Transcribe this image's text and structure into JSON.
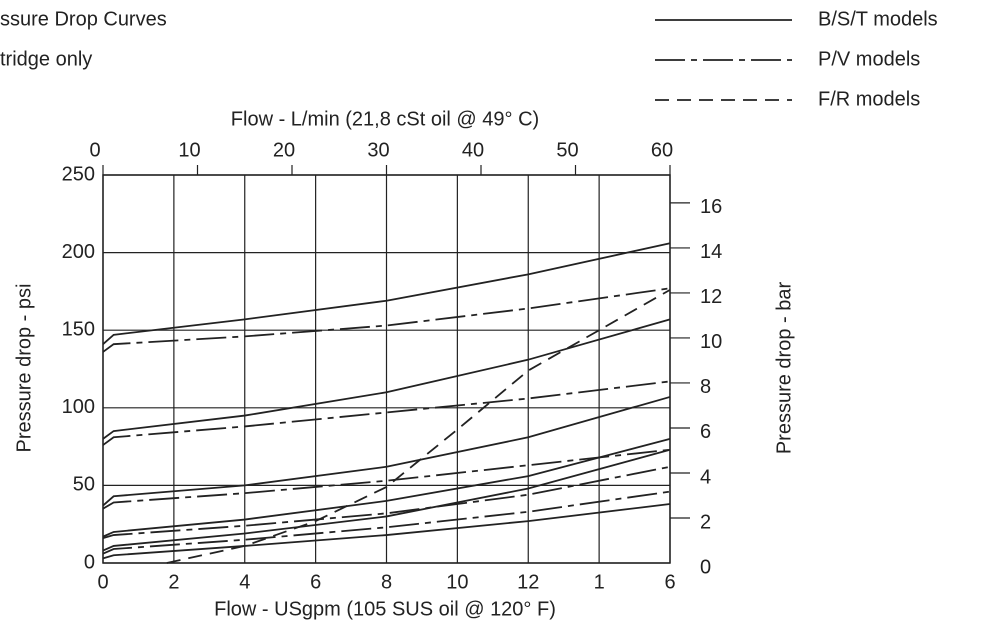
{
  "chart_data": {
    "type": "line",
    "title": "ssure Drop Curves",
    "subtitle": "tridge only",
    "x_label": "Flow - USgpm (105 SUS oil @ 120° F)",
    "x2_label": "Flow - L/min (21,8 cSt oil @ 49° C)",
    "y_label": "Pressure drop - psi",
    "y2_label": "Pressure drop - bar",
    "xlim": [
      0,
      16
    ],
    "xticks": [
      0,
      2,
      4,
      6,
      8,
      10,
      12,
      {
        "value": 14,
        "label": "1"
      },
      {
        "value": 16,
        "label": "6"
      }
    ],
    "x2lim": [
      0,
      60
    ],
    "x2ticks": [
      0,
      10,
      20,
      30,
      40,
      50,
      60
    ],
    "ylim": [
      0,
      250
    ],
    "yticks": [
      0,
      50,
      100,
      150,
      200,
      250
    ],
    "y2lim": [
      0,
      17.24
    ],
    "y2ticks": [
      0,
      2,
      4,
      6,
      8,
      10,
      12,
      14,
      16
    ],
    "grid": true,
    "legend": [
      {
        "label": "B/S/T models",
        "style": "solid"
      },
      {
        "label": "P/V models",
        "style": "dashdot"
      },
      {
        "label": "F/R models",
        "style": "dashed"
      }
    ],
    "series": [
      {
        "style": "solid",
        "color": "#222222",
        "x": [
          0,
          0.3,
          4,
          8,
          12,
          16
        ],
        "values": [
          141,
          147,
          157,
          169,
          186,
          206
        ]
      },
      {
        "style": "dashdot",
        "color": "#222222",
        "x": [
          0,
          0.3,
          4,
          8,
          12,
          16
        ],
        "values": [
          136,
          141,
          146,
          153,
          164,
          177
        ]
      },
      {
        "style": "solid",
        "color": "#222222",
        "x": [
          0,
          0.3,
          4,
          8,
          12,
          16
        ],
        "values": [
          80,
          85,
          95,
          110,
          131,
          157
        ]
      },
      {
        "style": "dashdot",
        "color": "#222222",
        "x": [
          0,
          0.3,
          4,
          8,
          12,
          16
        ],
        "values": [
          76,
          81,
          88,
          97,
          106,
          117
        ]
      },
      {
        "style": "solid",
        "color": "#222222",
        "x": [
          0,
          0.3,
          4,
          8,
          12,
          16
        ],
        "values": [
          37,
          43,
          50,
          62,
          81,
          107
        ]
      },
      {
        "style": "dashdot",
        "color": "#222222",
        "x": [
          0,
          0.3,
          4,
          8,
          12,
          16
        ],
        "values": [
          35,
          39,
          45,
          53,
          63,
          73
        ]
      },
      {
        "style": "solid",
        "color": "#222222",
        "x": [
          0,
          0.3,
          4,
          8,
          12,
          16
        ],
        "values": [
          17,
          20,
          28,
          40,
          56,
          80
        ]
      },
      {
        "style": "dashdot",
        "color": "#222222",
        "x": [
          0,
          0.3,
          4,
          8,
          12,
          16
        ],
        "values": [
          16,
          18,
          24,
          32,
          44,
          62
        ]
      },
      {
        "style": "solid",
        "color": "#222222",
        "x": [
          0,
          0.3,
          4,
          8,
          12,
          16
        ],
        "values": [
          8,
          11,
          19,
          30,
          48,
          73
        ]
      },
      {
        "style": "dashdot",
        "color": "#222222",
        "x": [
          0,
          0.3,
          4,
          8,
          12,
          16
        ],
        "values": [
          6,
          9,
          15,
          23,
          33,
          46
        ]
      },
      {
        "style": "solid",
        "color": "#222222",
        "x": [
          0,
          0.3,
          4,
          8,
          12,
          16
        ],
        "values": [
          3,
          5,
          11,
          18,
          27,
          38
        ]
      },
      {
        "style": "dashed",
        "color": "#222222",
        "x": [
          1.8,
          4,
          6,
          8,
          10,
          12,
          14,
          16
        ],
        "values": [
          0,
          11,
          27,
          49,
          86,
          124,
          150,
          176
        ]
      }
    ]
  }
}
